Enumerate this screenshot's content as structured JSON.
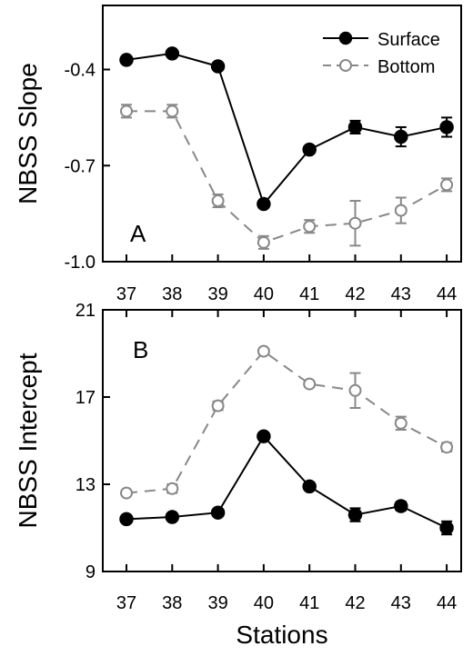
{
  "chart_data": [
    {
      "type": "line",
      "panel_label": "A",
      "ylabel": "NBSS Slope",
      "ylim": [
        -1.0,
        -0.2
      ],
      "yticks": [
        -1.0,
        -0.7,
        -0.4
      ],
      "ytick_labels": [
        "-1.0",
        "-0.7",
        "-0.4"
      ],
      "categories": [
        "37",
        "38",
        "39",
        "40",
        "41",
        "42",
        "43",
        "44"
      ],
      "legend_position": "top-right",
      "series": [
        {
          "name": "Surface",
          "color": "#000000",
          "marker": "filled-circle",
          "line": "solid",
          "values": [
            -0.37,
            -0.35,
            -0.39,
            -0.82,
            -0.65,
            -0.58,
            -0.61,
            -0.58
          ],
          "errors": [
            0.0,
            0.0,
            0.0,
            0.01,
            0.01,
            0.02,
            0.03,
            0.03
          ]
        },
        {
          "name": "Bottom",
          "color": "#888888",
          "marker": "open-circle",
          "line": "dashed",
          "values": [
            -0.53,
            -0.53,
            -0.81,
            -0.94,
            -0.89,
            -0.88,
            -0.84,
            -0.76
          ],
          "errors": [
            0.02,
            0.02,
            0.02,
            0.02,
            0.02,
            0.07,
            0.04,
            0.02
          ]
        }
      ]
    },
    {
      "type": "line",
      "panel_label": "B",
      "ylabel": "NBSS Intercept",
      "xlabel": "Stations",
      "ylim": [
        9,
        21
      ],
      "yticks": [
        9,
        13,
        17,
        21
      ],
      "ytick_labels": [
        "9",
        "13",
        "17",
        "21"
      ],
      "categories": [
        "37",
        "38",
        "39",
        "40",
        "41",
        "42",
        "43",
        "44"
      ],
      "series": [
        {
          "name": "Surface",
          "color": "#000000",
          "marker": "filled-circle",
          "line": "solid",
          "values": [
            11.4,
            11.5,
            11.7,
            15.2,
            12.9,
            11.6,
            12.0,
            11.0
          ],
          "errors": [
            0.0,
            0.0,
            0.0,
            0.0,
            0.1,
            0.3,
            0.2,
            0.3
          ]
        },
        {
          "name": "Bottom",
          "color": "#888888",
          "marker": "open-circle",
          "line": "dashed",
          "values": [
            12.6,
            12.8,
            16.6,
            19.1,
            17.6,
            17.3,
            15.8,
            14.7
          ],
          "errors": [
            0.1,
            0.2,
            0.2,
            0.1,
            0.1,
            0.8,
            0.3,
            0.2
          ]
        }
      ]
    }
  ],
  "colors": {
    "surface": "#000000",
    "bottom": "#888888"
  }
}
